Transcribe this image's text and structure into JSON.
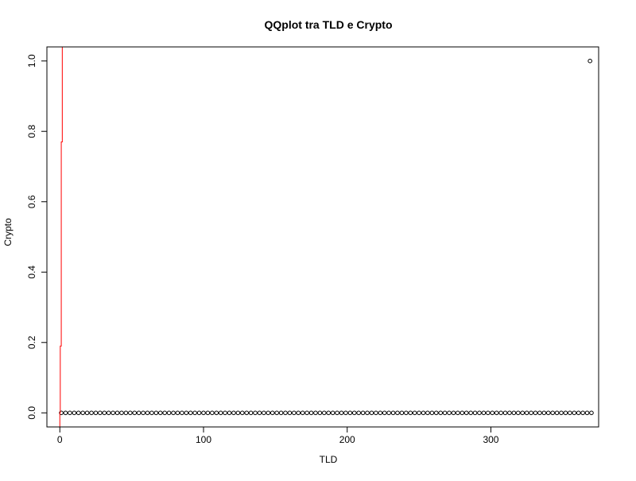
{
  "chart_data": {
    "type": "scatter",
    "title": "QQplot tra TLD e Crypto",
    "xlabel": "TLD",
    "ylabel": "Crypto",
    "xlim": [
      -9,
      375
    ],
    "ylim": [
      -0.04,
      1.04
    ],
    "x_ticks": [
      0,
      100,
      200,
      300
    ],
    "x_tick_labels": [
      "0",
      "100",
      "200",
      "300"
    ],
    "y_ticks": [
      0.0,
      0.2,
      0.4,
      0.6,
      0.8,
      1.0
    ],
    "y_tick_labels": [
      "0.0",
      "0.2",
      "0.4",
      "0.6",
      "0.8",
      "1.0"
    ],
    "grid": false,
    "legend": "none",
    "series": [
      {
        "type": "points",
        "marker": "open-circle",
        "color": "#000000",
        "x_from": 1,
        "x_to": 369,
        "x_step": 3,
        "y": 0,
        "extra_points": [
          {
            "x": 370,
            "y": 0
          },
          {
            "x": 369,
            "y": 1
          }
        ]
      },
      {
        "type": "line",
        "color": "#ff0000",
        "points": [
          {
            "x": 0,
            "y": -0.04
          },
          {
            "x": 0,
            "y": 0.0
          },
          {
            "x": 0.3,
            "y": 0.0
          },
          {
            "x": 0.3,
            "y": 0.19
          },
          {
            "x": 1.0,
            "y": 0.19
          },
          {
            "x": 1.0,
            "y": 0.77
          },
          {
            "x": 1.7,
            "y": 0.77
          },
          {
            "x": 1.7,
            "y": 1.04
          }
        ]
      }
    ]
  }
}
